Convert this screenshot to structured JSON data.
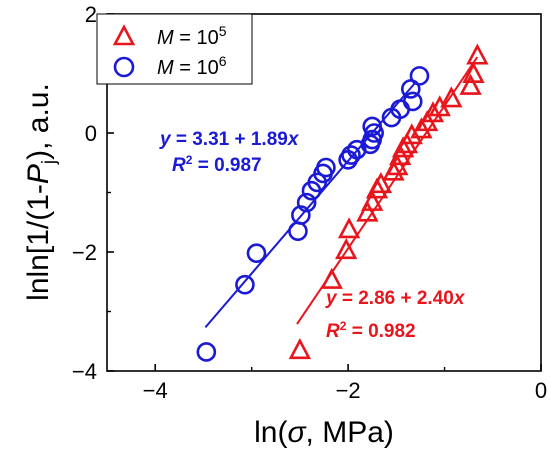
{
  "chart_data": {
    "type": "scatter",
    "x_axis": {
      "label_prefix": "ln(",
      "label_symbol": "σ",
      "label_suffix": ", MPa)",
      "range": [
        -4.5,
        0
      ],
      "ticks": [
        -4,
        -2,
        0
      ],
      "tick_labels": [
        "−4",
        "−2",
        "0"
      ]
    },
    "y_axis": {
      "label_prefix": "lnln[1/(1-",
      "label_symbol": "P",
      "label_subscript": "j",
      "label_suffix": "), a.u.",
      "range": [
        -4,
        2
      ],
      "ticks": [
        -4,
        -2,
        0,
        2
      ],
      "tick_labels": [
        "−4",
        "−2",
        "0",
        "2"
      ]
    },
    "legend": {
      "placement": "top-left",
      "entries": [
        {
          "series": 0,
          "var": "M",
          "eq": " = 10",
          "exp": "5"
        },
        {
          "series": 1,
          "var": "M",
          "eq": " = 10",
          "exp": "6"
        }
      ]
    },
    "series": [
      {
        "name_var": "M",
        "name_value": "10^5",
        "color": "#e8161c",
        "marker": "triangle",
        "points": [
          {
            "x": -2.5,
            "y": -3.66
          },
          {
            "x": -2.17,
            "y": -2.48
          },
          {
            "x": -2.02,
            "y": -1.98
          },
          {
            "x": -1.99,
            "y": -1.63
          },
          {
            "x": -1.8,
            "y": -1.35
          },
          {
            "x": -1.75,
            "y": -1.17
          },
          {
            "x": -1.7,
            "y": -0.96
          },
          {
            "x": -1.66,
            "y": -0.87
          },
          {
            "x": -1.53,
            "y": -0.66
          },
          {
            "x": -1.49,
            "y": -0.57
          },
          {
            "x": -1.46,
            "y": -0.4
          },
          {
            "x": -1.43,
            "y": -0.27
          },
          {
            "x": -1.39,
            "y": -0.2
          },
          {
            "x": -1.34,
            "y": -0.05
          },
          {
            "x": -1.24,
            "y": 0.05
          },
          {
            "x": -1.18,
            "y": 0.17
          },
          {
            "x": -1.12,
            "y": 0.32
          },
          {
            "x": -1.05,
            "y": 0.42
          },
          {
            "x": -0.93,
            "y": 0.57
          },
          {
            "x": -0.73,
            "y": 0.78
          },
          {
            "x": -0.7,
            "y": 0.98
          },
          {
            "x": -0.66,
            "y": 1.29
          }
        ],
        "fit": {
          "x": [
            -2.53,
            -0.66
          ],
          "intercept": 2.86,
          "slope": 2.4
        },
        "annotation": {
          "eq_var": "y",
          "eq_text": " = 2.86 + 2.40",
          "eq_x": "x",
          "r2_var": "R",
          "r2_sup": "2",
          "r2_text": " = 0.982"
        }
      },
      {
        "name_var": "M",
        "name_value": "10^6",
        "color": "#1a1ad6",
        "marker": "circle",
        "points": [
          {
            "x": -3.47,
            "y": -3.68
          },
          {
            "x": -3.07,
            "y": -2.55
          },
          {
            "x": -2.95,
            "y": -2.02
          },
          {
            "x": -2.52,
            "y": -1.65
          },
          {
            "x": -2.49,
            "y": -1.38
          },
          {
            "x": -2.43,
            "y": -1.17
          },
          {
            "x": -2.38,
            "y": -0.97
          },
          {
            "x": -2.32,
            "y": -0.83
          },
          {
            "x": -2.26,
            "y": -0.68
          },
          {
            "x": -2.23,
            "y": -0.58
          },
          {
            "x": -2.0,
            "y": -0.45
          },
          {
            "x": -1.97,
            "y": -0.37
          },
          {
            "x": -1.91,
            "y": -0.28
          },
          {
            "x": -1.77,
            "y": -0.19
          },
          {
            "x": -1.75,
            "y": -0.11
          },
          {
            "x": -1.73,
            "y": 0.0
          },
          {
            "x": -1.75,
            "y": 0.11
          },
          {
            "x": -1.55,
            "y": 0.26
          },
          {
            "x": -1.46,
            "y": 0.4
          },
          {
            "x": -1.33,
            "y": 0.53
          },
          {
            "x": -1.35,
            "y": 0.74
          },
          {
            "x": -1.26,
            "y": 0.96
          }
        ],
        "fit": {
          "x": [
            -3.48,
            -1.29
          ],
          "intercept": 3.31,
          "slope": 1.89
        },
        "annotation": {
          "eq_var": "y",
          "eq_text": " = 3.31 + 1.89",
          "eq_x": "x",
          "r2_var": "R",
          "r2_sup": "2",
          "r2_text": " = 0.987"
        }
      }
    ],
    "grid": false
  }
}
